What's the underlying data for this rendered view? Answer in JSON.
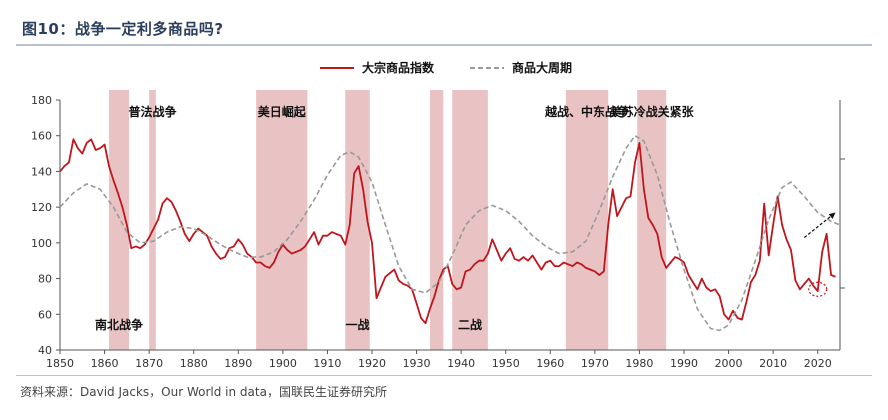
{
  "title": "图10：战争一定利多商品吗?",
  "source": "资料来源：David Jacks，Our World in data，国联民生证券研究所",
  "chart_data": {
    "type": "line",
    "xlim": [
      1850,
      2025
    ],
    "ylim": [
      40,
      180
    ],
    "x_ticks": [
      "1850",
      "1860",
      "1870",
      "1880",
      "1890",
      "1900",
      "1910",
      "1920",
      "1930",
      "1940",
      "1950",
      "1960",
      "1970",
      "1980",
      "1990",
      "2000",
      "2010",
      "2020"
    ],
    "y_ticks": [
      "40",
      "60",
      "80",
      "100",
      "120",
      "140",
      "160",
      "180"
    ],
    "legend": {
      "position": "top-center",
      "entries": [
        "大宗商品指数",
        "商品大周期"
      ]
    },
    "series": [
      {
        "name": "大宗商品指数",
        "color": "#c0151c",
        "style": "solid",
        "points": [
          [
            1850,
            140
          ],
          [
            1851,
            143
          ],
          [
            1852,
            145
          ],
          [
            1853,
            158
          ],
          [
            1854,
            153
          ],
          [
            1855,
            150
          ],
          [
            1856,
            156
          ],
          [
            1857,
            158
          ],
          [
            1858,
            152
          ],
          [
            1859,
            153
          ],
          [
            1860,
            155
          ],
          [
            1861,
            143
          ],
          [
            1862,
            135
          ],
          [
            1863,
            128
          ],
          [
            1864,
            120
          ],
          [
            1865,
            110
          ],
          [
            1866,
            97
          ],
          [
            1867,
            98
          ],
          [
            1868,
            97
          ],
          [
            1869,
            99
          ],
          [
            1870,
            103
          ],
          [
            1871,
            108
          ],
          [
            1872,
            113
          ],
          [
            1873,
            122
          ],
          [
            1874,
            125
          ],
          [
            1875,
            123
          ],
          [
            1876,
            118
          ],
          [
            1877,
            112
          ],
          [
            1878,
            105
          ],
          [
            1879,
            101
          ],
          [
            1880,
            105
          ],
          [
            1881,
            108
          ],
          [
            1882,
            106
          ],
          [
            1883,
            104
          ],
          [
            1884,
            98
          ],
          [
            1885,
            94
          ],
          [
            1886,
            91
          ],
          [
            1887,
            92
          ],
          [
            1888,
            97
          ],
          [
            1889,
            98
          ],
          [
            1890,
            102
          ],
          [
            1891,
            99
          ],
          [
            1892,
            94
          ],
          [
            1893,
            92
          ],
          [
            1894,
            89
          ],
          [
            1895,
            89
          ],
          [
            1896,
            87
          ],
          [
            1897,
            86
          ],
          [
            1898,
            89
          ],
          [
            1899,
            95
          ],
          [
            1900,
            99
          ],
          [
            1901,
            96
          ],
          [
            1902,
            94
          ],
          [
            1903,
            95
          ],
          [
            1904,
            96
          ],
          [
            1905,
            98
          ],
          [
            1906,
            102
          ],
          [
            1907,
            106
          ],
          [
            1908,
            99
          ],
          [
            1909,
            104
          ],
          [
            1910,
            104
          ],
          [
            1911,
            106
          ],
          [
            1912,
            105
          ],
          [
            1913,
            104
          ],
          [
            1914,
            99
          ],
          [
            1915,
            110
          ],
          [
            1916,
            139
          ],
          [
            1917,
            143
          ],
          [
            1918,
            130
          ],
          [
            1919,
            112
          ],
          [
            1920,
            100
          ],
          [
            1921,
            69
          ],
          [
            1922,
            75
          ],
          [
            1923,
            81
          ],
          [
            1924,
            83
          ],
          [
            1925,
            85
          ],
          [
            1926,
            79
          ],
          [
            1927,
            77
          ],
          [
            1928,
            76
          ],
          [
            1929,
            74
          ],
          [
            1930,
            66
          ],
          [
            1931,
            58
          ],
          [
            1932,
            55
          ],
          [
            1933,
            63
          ],
          [
            1934,
            70
          ],
          [
            1935,
            79
          ],
          [
            1936,
            85
          ],
          [
            1937,
            87
          ],
          [
            1938,
            77
          ],
          [
            1939,
            74
          ],
          [
            1940,
            75
          ],
          [
            1941,
            84
          ],
          [
            1942,
            85
          ],
          [
            1943,
            88
          ],
          [
            1944,
            90
          ],
          [
            1945,
            90
          ],
          [
            1946,
            94
          ],
          [
            1947,
            102
          ],
          [
            1948,
            96
          ],
          [
            1949,
            90
          ],
          [
            1950,
            94
          ],
          [
            1951,
            97
          ],
          [
            1952,
            91
          ],
          [
            1953,
            90
          ],
          [
            1954,
            92
          ],
          [
            1955,
            90
          ],
          [
            1956,
            93
          ],
          [
            1957,
            89
          ],
          [
            1958,
            85
          ],
          [
            1959,
            89
          ],
          [
            1960,
            90
          ],
          [
            1961,
            87
          ],
          [
            1962,
            87
          ],
          [
            1963,
            89
          ],
          [
            1964,
            88
          ],
          [
            1965,
            87
          ],
          [
            1966,
            89
          ],
          [
            1967,
            88
          ],
          [
            1968,
            86
          ],
          [
            1969,
            85
          ],
          [
            1970,
            84
          ],
          [
            1971,
            82
          ],
          [
            1972,
            84
          ],
          [
            1973,
            110
          ],
          [
            1974,
            130
          ],
          [
            1975,
            115
          ],
          [
            1976,
            120
          ],
          [
            1977,
            125
          ],
          [
            1978,
            126
          ],
          [
            1979,
            145
          ],
          [
            1980,
            156
          ],
          [
            1981,
            130
          ],
          [
            1982,
            114
          ],
          [
            1983,
            110
          ],
          [
            1984,
            105
          ],
          [
            1985,
            92
          ],
          [
            1986,
            86
          ],
          [
            1987,
            89
          ],
          [
            1988,
            92
          ],
          [
            1989,
            91
          ],
          [
            1990,
            89
          ],
          [
            1991,
            82
          ],
          [
            1992,
            78
          ],
          [
            1993,
            74
          ],
          [
            1994,
            80
          ],
          [
            1995,
            75
          ],
          [
            1996,
            73
          ],
          [
            1997,
            74
          ],
          [
            1998,
            70
          ],
          [
            1999,
            60
          ],
          [
            2000,
            57
          ],
          [
            2001,
            62
          ],
          [
            2002,
            58
          ],
          [
            2003,
            57
          ],
          [
            2004,
            67
          ],
          [
            2005,
            78
          ],
          [
            2006,
            82
          ],
          [
            2007,
            90
          ],
          [
            2008,
            122
          ],
          [
            2009,
            93
          ],
          [
            2010,
            110
          ],
          [
            2011,
            126
          ],
          [
            2012,
            110
          ],
          [
            2013,
            102
          ],
          [
            2014,
            96
          ],
          [
            2015,
            79
          ],
          [
            2016,
            74
          ],
          [
            2017,
            77
          ],
          [
            2018,
            80
          ],
          [
            2019,
            76
          ],
          [
            2020,
            73
          ],
          [
            2021,
            95
          ],
          [
            2022,
            105
          ],
          [
            2023,
            82
          ],
          [
            2024,
            81
          ]
        ]
      },
      {
        "name": "商品大周期",
        "color": "#999999",
        "style": "dashed",
        "points": [
          [
            1850,
            120
          ],
          [
            1853,
            128
          ],
          [
            1856,
            133
          ],
          [
            1859,
            130
          ],
          [
            1862,
            120
          ],
          [
            1865,
            106
          ],
          [
            1868,
            100
          ],
          [
            1871,
            101
          ],
          [
            1874,
            106
          ],
          [
            1877,
            109
          ],
          [
            1880,
            108
          ],
          [
            1883,
            104
          ],
          [
            1886,
            99
          ],
          [
            1889,
            95
          ],
          [
            1892,
            92
          ],
          [
            1895,
            92
          ],
          [
            1898,
            95
          ],
          [
            1901,
            102
          ],
          [
            1904,
            112
          ],
          [
            1907,
            124
          ],
          [
            1910,
            138
          ],
          [
            1913,
            149
          ],
          [
            1915,
            151
          ],
          [
            1917,
            148
          ],
          [
            1920,
            134
          ],
          [
            1923,
            110
          ],
          [
            1926,
            87
          ],
          [
            1929,
            74
          ],
          [
            1932,
            72
          ],
          [
            1935,
            78
          ],
          [
            1938,
            93
          ],
          [
            1941,
            110
          ],
          [
            1944,
            118
          ],
          [
            1947,
            121
          ],
          [
            1950,
            118
          ],
          [
            1953,
            112
          ],
          [
            1956,
            104
          ],
          [
            1959,
            98
          ],
          [
            1962,
            94
          ],
          [
            1965,
            95
          ],
          [
            1968,
            101
          ],
          [
            1971,
            118
          ],
          [
            1974,
            137
          ],
          [
            1977,
            153
          ],
          [
            1979,
            160
          ],
          [
            1981,
            157
          ],
          [
            1984,
            138
          ],
          [
            1987,
            110
          ],
          [
            1990,
            85
          ],
          [
            1993,
            63
          ],
          [
            1996,
            52
          ],
          [
            1998,
            51
          ],
          [
            2000,
            54
          ],
          [
            2003,
            68
          ],
          [
            2006,
            90
          ],
          [
            2009,
            113
          ],
          [
            2012,
            131
          ],
          [
            2014,
            134
          ],
          [
            2017,
            126
          ],
          [
            2020,
            117
          ],
          [
            2023,
            112
          ],
          [
            2025,
            110
          ]
        ]
      }
    ],
    "shaded_periods": [
      {
        "start": 1861,
        "end": 1865.5,
        "label": "南北战争",
        "label_pos": "bottom"
      },
      {
        "start": 1870,
        "end": 1871.5,
        "label": "普法战争",
        "label_pos": "top"
      },
      {
        "start": 1894,
        "end": 1905.5,
        "label": "美日崛起",
        "label_pos": "top"
      },
      {
        "start": 1914,
        "end": 1919.5,
        "label": "一战",
        "label_pos": "bottom"
      },
      {
        "start": 1933,
        "end": 1936,
        "label": "",
        "label_pos": "none"
      },
      {
        "start": 1938,
        "end": 1946,
        "label": "二战",
        "label_pos": "bottom"
      },
      {
        "start": 1963.5,
        "end": 1973,
        "label": "越战、中东战争",
        "label_pos": "top"
      },
      {
        "start": 1979.5,
        "end": 1986,
        "label": "美苏冷战关紧张",
        "label_pos": "top"
      }
    ],
    "annotations": {
      "arrow": {
        "from": [
          2017,
          103
        ],
        "to": [
          2024,
          117
        ]
      },
      "circle": {
        "center": [
          2020,
          74
        ]
      }
    }
  }
}
